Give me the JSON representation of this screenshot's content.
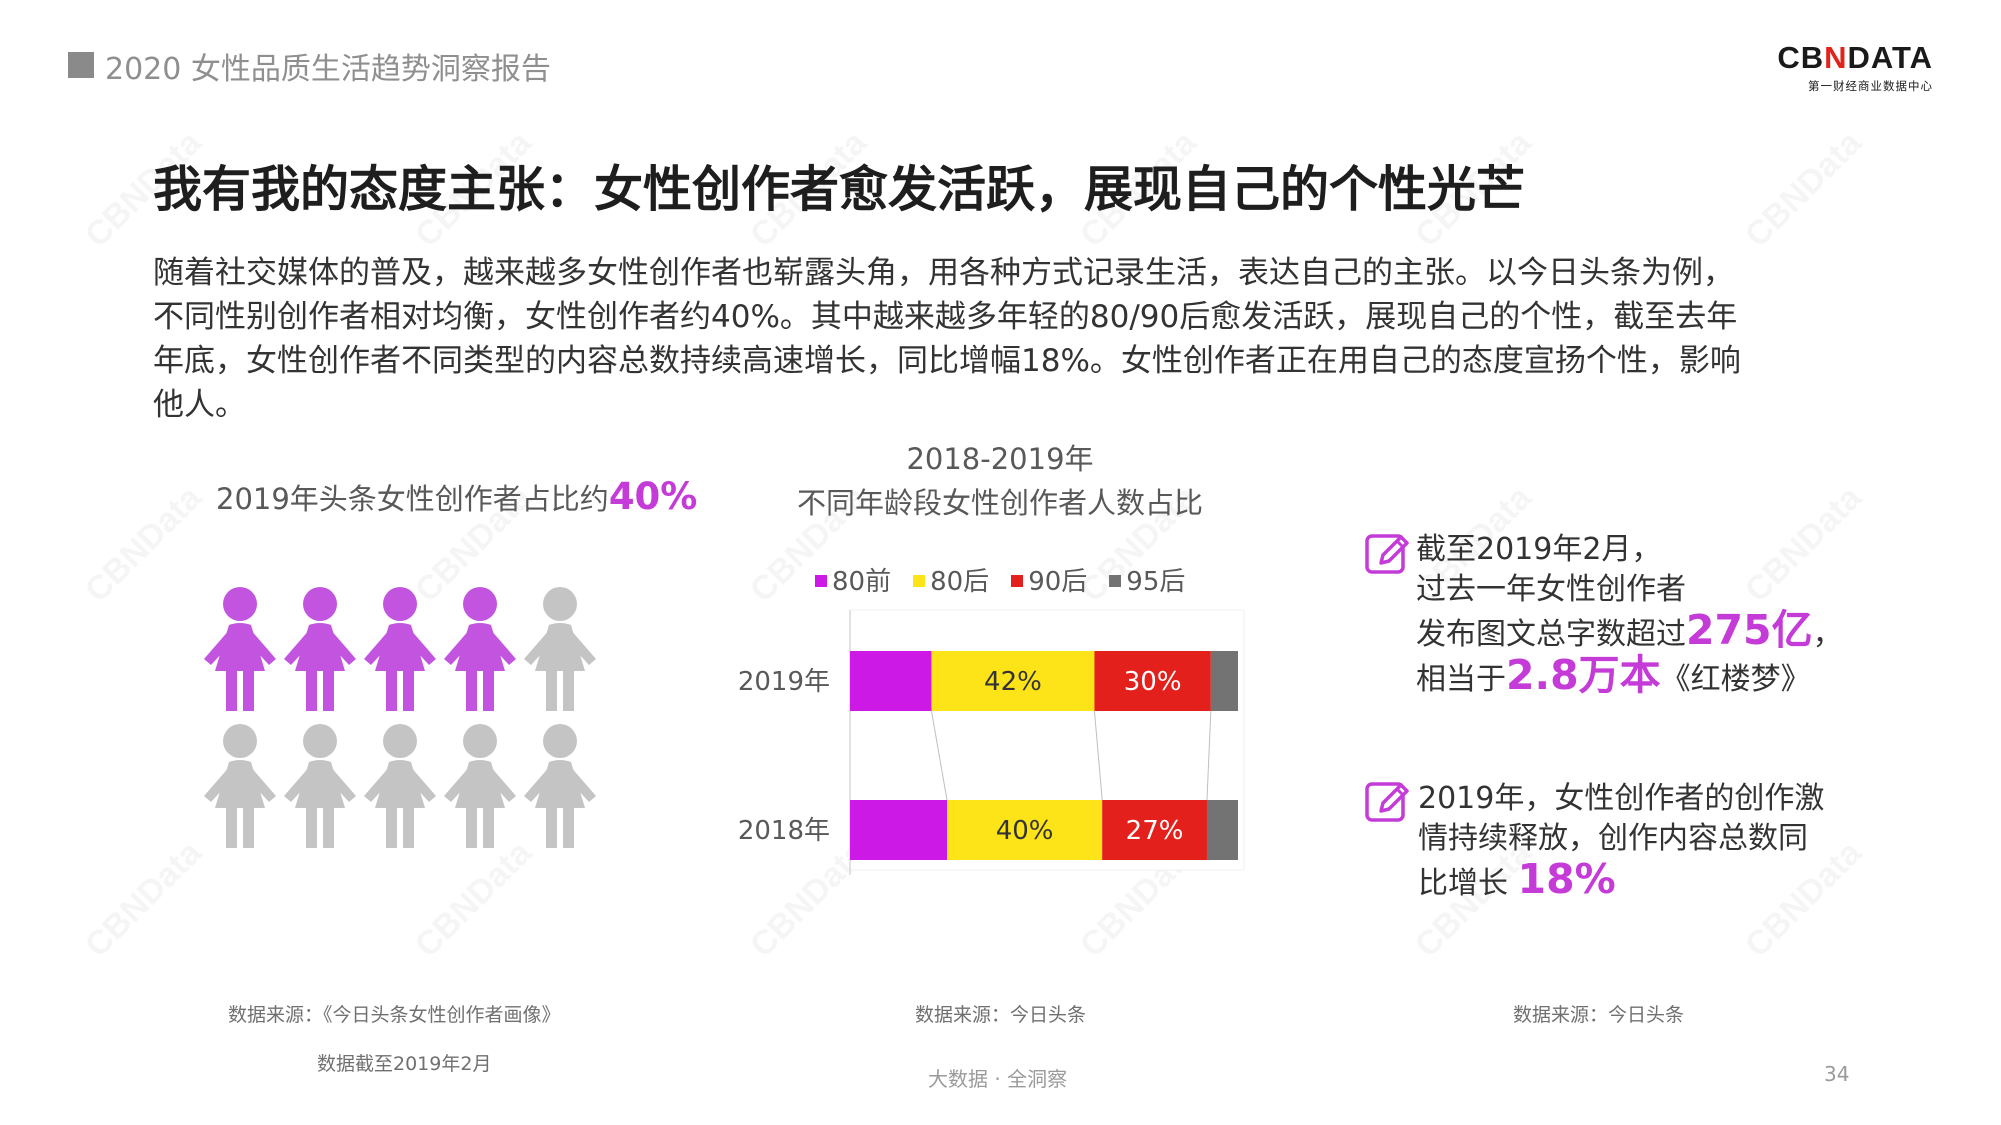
{
  "header": {
    "report_title": "2020 女性品质生活趋势洞察报告"
  },
  "logo": {
    "brand_prefix": "CB",
    "brand_x": "N",
    "brand_suffix": "DATA",
    "subtitle": "第一财经商业数据中心"
  },
  "title": "我有我的态度主张：女性创作者愈发活跃，展现自己的个性光芒",
  "body_lines": [
    "随着社交媒体的普及，越来越多女性创作者也崭露头角，用各种方式记录生活，表达自己的主张。以今日头条为例，",
    "不同性别创作者相对均衡，女性创作者约40%。其中越来越多年轻的80/90后愈发活跃，展现自己的个性，截至去年",
    "年底，女性创作者不同类型的内容总数持续高速增长，同比增幅18%。女性创作者正在用自己的态度宣扬个性，影响",
    "他人。"
  ],
  "left_panel": {
    "caption_prefix": "2019年头条女性创作者占比约",
    "caption_pct": "40%",
    "female_share": 0.4,
    "icon_total": 10,
    "source_line1": "数据来源：《今日头条女性创作者画像》",
    "source_line2": "数据截至2019年2月"
  },
  "chart_data": {
    "type": "bar",
    "orientation": "horizontal",
    "stacked": true,
    "normalized": true,
    "title_line1": "2018-2019年",
    "title_line2": "不同年龄段女性创作者人数占比",
    "categories": [
      "2019年",
      "2018年"
    ],
    "series": [
      {
        "name": "80前",
        "color": "#cc19e6",
        "values": [
          21,
          25
        ],
        "labels": [
          "",
          ""
        ]
      },
      {
        "name": "80后",
        "color": "#fde418",
        "values": [
          42,
          40
        ],
        "labels": [
          "42%",
          "40%"
        ]
      },
      {
        "name": "90后",
        "color": "#e3201b",
        "values": [
          30,
          27
        ],
        "labels": [
          "30%",
          "27%"
        ]
      },
      {
        "name": "95后",
        "color": "#737373",
        "values": [
          7,
          8
        ],
        "labels": [
          "",
          ""
        ]
      }
    ],
    "xlim": [
      0,
      100
    ],
    "legend_position": "top",
    "source": "数据来源：今日头条"
  },
  "right_panel": {
    "fact1": {
      "line1": "截至2019年2月，",
      "line2": "过去一年女性创作者",
      "line3_prefix": "发布图文总字数超过",
      "line3_em": "275亿",
      "line3_suffix": "，",
      "line4_prefix": "相当于",
      "line4_em": "2.8万本",
      "line4_suffix": "《红楼梦》"
    },
    "fact2": {
      "line1": "2019年，女性创作者的创作激",
      "line2": "情持续释放，创作内容总数同",
      "line3_prefix": "比增长 ",
      "line3_em": "18%"
    },
    "source": "数据来源：今日头条"
  },
  "footer": {
    "center_text": "大数据 · 全洞察",
    "page_number": "34"
  },
  "colors": {
    "accent": "#c43bd8",
    "person_female": "#c254e0",
    "person_grey": "#c4c4c4"
  },
  "watermark": "CBNData"
}
